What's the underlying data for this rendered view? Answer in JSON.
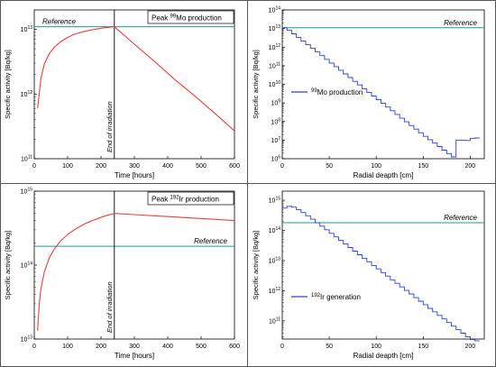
{
  "colors": {
    "frame": "#555555",
    "decay_curve": "#e8413c",
    "profile_curve": "#2a3fe0",
    "reference_line": "#1e9a90",
    "reference_text": "#1e9a90"
  },
  "chart_data": [
    {
      "id": "mo-time",
      "type": "line",
      "xlabel": "Time [hours]",
      "ylabel": "Specific activity [Bq/kg]",
      "x_ticks": [
        0,
        100,
        200,
        300,
        400,
        500,
        600
      ],
      "xlim": [
        0,
        600
      ],
      "y_scale": "log",
      "ylim": [
        100000000000.0,
        20000000000000.0
      ],
      "y_ticks": [
        {
          "value": 100000000000.0,
          "base": "10",
          "exp": "11"
        },
        {
          "value": 1000000000000.0,
          "base": "10",
          "exp": "12"
        },
        {
          "value": 10000000000000.0,
          "base": "10",
          "exp": "13"
        }
      ],
      "annotation_box": {
        "pre": "Peak ",
        "sup": "99",
        "post": "Mo production"
      },
      "reference": {
        "label": "Reference",
        "value": 11000000000000.0
      },
      "irradiation": {
        "label": "End of irradiation",
        "x": 240
      },
      "series": [
        {
          "x": [
            10,
            20,
            30,
            45,
            60,
            80,
            100,
            120,
            150,
            180,
            210,
            240,
            300,
            360,
            420,
            480,
            540,
            600
          ],
          "y": [
            600000000000.0,
            1750000000000.0,
            2900000000000.0,
            4200000000000.0,
            5300000000000.0,
            6500000000000.0,
            7500000000000.0,
            8400000000000.0,
            9300000000000.0,
            10000000000000.0,
            10600000000000.0,
            11000000000000.0,
            5900000000000.0,
            3200000000000.0,
            1700000000000.0,
            940000000000.0,
            510000000000.0,
            270000000000.0
          ]
        }
      ]
    },
    {
      "id": "mo-depth",
      "type": "line",
      "xlabel": "Radial deapth [cm]",
      "ylabel": "Specific activity [Bq/kg]",
      "x_ticks": [
        0,
        50,
        100,
        150,
        200
      ],
      "xlim": [
        0,
        215
      ],
      "y_scale": "log",
      "ylim": [
        1000000.0,
        100000000000000.0
      ],
      "y_ticks": [
        {
          "value": 1000000.0,
          "base": "10",
          "exp": "6"
        },
        {
          "value": 10000000.0,
          "base": "10",
          "exp": "7"
        },
        {
          "value": 100000000.0,
          "base": "10",
          "exp": "8"
        },
        {
          "value": 1000000000.0,
          "base": "10",
          "exp": "9"
        },
        {
          "value": 10000000000.0,
          "base": "10",
          "exp": "10"
        },
        {
          "value": 100000000000.0,
          "base": "10",
          "exp": "11"
        },
        {
          "value": 1000000000000.0,
          "base": "10",
          "exp": "12"
        },
        {
          "value": 10000000000000.0,
          "base": "10",
          "exp": "13"
        },
        {
          "value": 100000000000000.0,
          "base": "10",
          "exp": "14"
        }
      ],
      "reference": {
        "label": "Reference",
        "value": 11000000000000.0
      },
      "legend": {
        "sup": "99",
        "post": "Mo production",
        "placement": "left"
      },
      "series": [
        {
          "step": true,
          "x": [
            0,
            5,
            10,
            15,
            20,
            25,
            30,
            35,
            40,
            45,
            50,
            55,
            60,
            65,
            70,
            75,
            80,
            85,
            90,
            95,
            100,
            105,
            110,
            115,
            120,
            125,
            130,
            135,
            140,
            145,
            150,
            155,
            160,
            165,
            170,
            175,
            180,
            185,
            190,
            195,
            200,
            205
          ],
          "y": [
            11000000000000.0,
            8000000000000.0,
            5200000000000.0,
            3300000000000.0,
            2100000000000.0,
            1350000000000.0,
            860000000000.0,
            550000000000.0,
            350000000000.0,
            220000000000.0,
            140000000000.0,
            89000000000.0,
            57000000000.0,
            36000000000.0,
            23000000000.0,
            14500000000.0,
            9200000000.0,
            5800000000.0,
            3700000000.0,
            2350000000.0,
            1500000000.0,
            950000000.0,
            600000000.0,
            380000000.0,
            240000000.0,
            150000000.0,
            96000000.0,
            61000000.0,
            39000000.0,
            25000000.0,
            16000000.0,
            10500000.0,
            6900000.0,
            4500000.0,
            2900000.0,
            1900000.0,
            1250000.0,
            10000000.0,
            10000000.0,
            9500000.0,
            12500000.0,
            13000000.0
          ]
        }
      ]
    },
    {
      "id": "ir-time",
      "type": "line",
      "xlabel": "Time [hours]",
      "ylabel": "Specific activity [Bq/kg]",
      "x_ticks": [
        0,
        100,
        200,
        300,
        400,
        500,
        600
      ],
      "xlim": [
        0,
        600
      ],
      "y_scale": "log",
      "ylim": [
        10000000000000.0,
        1000000000000000.0
      ],
      "y_ticks": [
        {
          "value": 10000000000000.0,
          "base": "10",
          "exp": "13"
        },
        {
          "value": 100000000000000.0,
          "base": "10",
          "exp": "14"
        },
        {
          "value": 1000000000000000.0,
          "base": "10",
          "exp": "15"
        }
      ],
      "annotation_box": {
        "pre": "Peak ",
        "sup": "192",
        "post": "Ir production"
      },
      "reference": {
        "label": "Reference",
        "value": 180000000000000.0
      },
      "irradiation": {
        "label": "End of irradiation",
        "x": 240
      },
      "series": [
        {
          "x": [
            10,
            15,
            20,
            30,
            45,
            60,
            80,
            100,
            120,
            150,
            180,
            210,
            240,
            300,
            360,
            420,
            480,
            540,
            600
          ],
          "y": [
            13000000000000.0,
            30000000000000.0,
            48000000000000.0,
            80000000000000.0,
            125000000000000.0,
            165000000000000.0,
            215000000000000.0,
            260000000000000.0,
            300000000000000.0,
            360000000000000.0,
            410000000000000.0,
            460000000000000.0,
            500000000000000.0,
            482000000000000.0,
            465000000000000.0,
            448000000000000.0,
            432000000000000.0,
            416000000000000.0,
            400000000000000.0
          ]
        }
      ]
    },
    {
      "id": "ir-depth",
      "type": "line",
      "xlabel": "Radial deapth [cm]",
      "ylabel": "Specific activity [Bq/kg]",
      "x_ticks": [
        0,
        50,
        100,
        150,
        200
      ],
      "xlim": [
        0,
        215
      ],
      "y_scale": "log",
      "ylim": [
        25000000000.0,
        2000000000000000.0
      ],
      "y_ticks": [
        {
          "value": 100000000000.0,
          "base": "10",
          "exp": "11"
        },
        {
          "value": 1000000000000.0,
          "base": "10",
          "exp": "12"
        },
        {
          "value": 10000000000000.0,
          "base": "10",
          "exp": "13"
        },
        {
          "value": 100000000000000.0,
          "base": "10",
          "exp": "14"
        },
        {
          "value": 1000000000000000.0,
          "base": "10",
          "exp": "15"
        }
      ],
      "reference": {
        "label": "Reference",
        "value": 180000000000000.0
      },
      "legend": {
        "sup": "192",
        "post": "Ir generation",
        "placement": "bottom-left"
      },
      "series": [
        {
          "step": true,
          "x": [
            0,
            5,
            10,
            15,
            20,
            25,
            30,
            35,
            40,
            45,
            50,
            55,
            60,
            65,
            70,
            75,
            80,
            85,
            90,
            95,
            100,
            105,
            110,
            115,
            120,
            125,
            130,
            135,
            140,
            145,
            150,
            155,
            160,
            165,
            170,
            175,
            180,
            185,
            190,
            195,
            200,
            205
          ],
          "y": [
            550000000000000.0,
            630000000000000.0,
            590000000000000.0,
            490000000000000.0,
            390000000000000.0,
            305000000000000.0,
            235000000000000.0,
            180000000000000.0,
            138000000000000.0,
            105000000000000.0,
            80000000000000.0,
            61000000000000.0,
            46500000000000.0,
            35500000000000.0,
            27000000000000.0,
            20500000000000.0,
            15600000000000.0,
            11900000000000.0,
            9100000000000.0,
            6900000000000.0,
            5300000000000.0,
            4000000000000.0,
            3050000000000.0,
            2300000000000.0,
            1760000000000.0,
            1340000000000.0,
            1020000000000.0,
            780000000000.0,
            590000000000.0,
            450000000000.0,
            345000000000.0,
            260000000000.0,
            200000000000.0,
            152000000000.0,
            116000000000.0,
            88000000000.0,
            67000000000.0,
            51000000000.0,
            39000000000.0,
            30000000000.0,
            24000000000.0,
            22000000000.0
          ]
        }
      ]
    }
  ]
}
